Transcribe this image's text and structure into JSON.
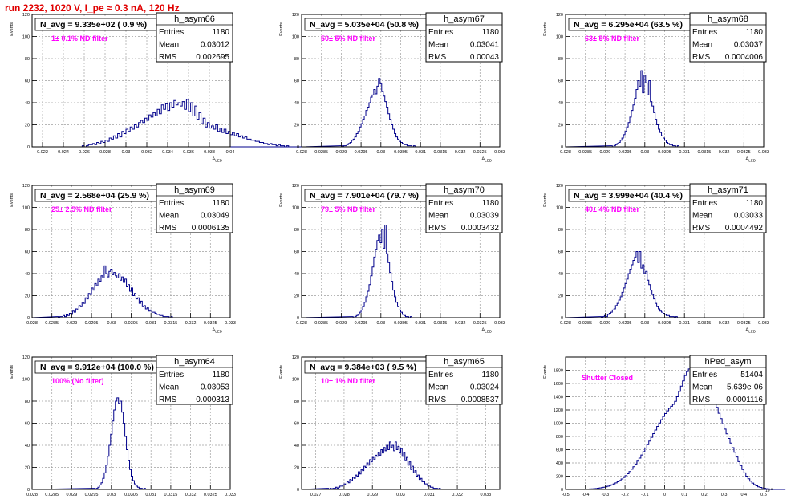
{
  "page": {
    "run_title": "run 2232,  1020 V, I_pe ≈ 0.3 nA, 120 Hz"
  },
  "colors": {
    "frame": "#000000",
    "grid": "#a0a0a0",
    "histogram": "#00008b",
    "label": "#ff00ff",
    "title": "#e00000"
  },
  "chart_data": [
    {
      "type": "histogram",
      "name": "h_asym66",
      "nd_label": "1± 0.1% ND filter",
      "n_avg": "N_avg = 9.335e+02 ( 0.9 %)",
      "stats": [
        [
          "Entries",
          "1180"
        ],
        [
          "Mean",
          "0.03012"
        ],
        [
          "RMS",
          "0.002695"
        ]
      ],
      "xlabel": "A_LED",
      "ylabel": "Events",
      "xlim": [
        0.021,
        0.04
      ],
      "ylim": [
        0,
        120
      ],
      "xticks": [
        0.022,
        0.024,
        0.026,
        0.028,
        0.03,
        0.032,
        0.034,
        0.036,
        0.038,
        0.04
      ],
      "xtick_labels": [
        "0.022",
        "0.024",
        "0.026",
        "0.028",
        "0.03",
        "0.032",
        "0.034",
        "0.036",
        "0.038",
        "0.04"
      ],
      "yticks": [
        0,
        20,
        40,
        60,
        80,
        100,
        120
      ],
      "x_first": 0.0218,
      "x_step": 0.0002,
      "counts": [
        0,
        0,
        0,
        0,
        0,
        0,
        0,
        0,
        0,
        0,
        0,
        0,
        0,
        0,
        0,
        0,
        0,
        0,
        0,
        0,
        1,
        0,
        1,
        2,
        2,
        3,
        2,
        4,
        3,
        5,
        4,
        6,
        5,
        8,
        7,
        10,
        8,
        12,
        9,
        14,
        12,
        16,
        14,
        18,
        16,
        20,
        18,
        22,
        24,
        22,
        26,
        24,
        29,
        27,
        31,
        28,
        34,
        30,
        38,
        34,
        39,
        33,
        40,
        36,
        42,
        38,
        40,
        37,
        41,
        34,
        43,
        32,
        40,
        28,
        37,
        25,
        31,
        21,
        26,
        18,
        22,
        17,
        19,
        16,
        20,
        14,
        17,
        13,
        16,
        12,
        14,
        11,
        13,
        10,
        12,
        9,
        10,
        8,
        9,
        7,
        7,
        6,
        6,
        5,
        5,
        4,
        4,
        3,
        3,
        2,
        3,
        2,
        2,
        1,
        2,
        1,
        1,
        0,
        1,
        0,
        0,
        0,
        0,
        0,
        0,
        0,
        0,
        0,
        0,
        0,
        0,
        0
      ]
    },
    {
      "type": "histogram",
      "name": "h_asym67",
      "nd_label": "50± 5% ND filter",
      "n_avg": "N_avg = 5.035e+04 (50.8 %)",
      "stats": [
        [
          "Entries",
          "1180"
        ],
        [
          "Mean",
          "0.03041"
        ],
        [
          "RMS",
          "0.00043"
        ]
      ],
      "xlabel": "A_LED",
      "ylabel": "Events",
      "xlim": [
        0.028,
        0.033
      ],
      "ylim": [
        0,
        120
      ],
      "xticks": [
        0.028,
        0.0285,
        0.029,
        0.0295,
        0.03,
        0.0305,
        0.031,
        0.0315,
        0.032,
        0.0325,
        0.033
      ],
      "xtick_labels": [
        "0.028",
        "0.0285",
        "0.029",
        "0.0295",
        "0.03",
        "0.0305",
        "0.031",
        "0.0315",
        "0.032",
        "0.0325",
        "0.033"
      ],
      "yticks": [
        0,
        20,
        40,
        60,
        80,
        100,
        120
      ],
      "x_first": 0.02898,
      "x_step": 4e-05,
      "counts": [
        1,
        0,
        1,
        1,
        2,
        3,
        4,
        6,
        7,
        9,
        12,
        14,
        18,
        21,
        25,
        28,
        33,
        36,
        40,
        45,
        47,
        52,
        48,
        55,
        62,
        57,
        50,
        46,
        41,
        36,
        30,
        25,
        20,
        16,
        12,
        9,
        7,
        5,
        4,
        3,
        2,
        2,
        1,
        1,
        1,
        0,
        1,
        0,
        0,
        0
      ]
    },
    {
      "type": "histogram",
      "name": "h_asym68",
      "nd_label": "63± 5% ND filter",
      "n_avg": "N_avg = 6.295e+04 (63.5 %)",
      "stats": [
        [
          "Entries",
          "1180"
        ],
        [
          "Mean",
          "0.03037"
        ],
        [
          "RMS",
          "0.0004006"
        ]
      ],
      "xlabel": "A_LED",
      "ylabel": "Events",
      "xlim": [
        0.028,
        0.033
      ],
      "ylim": [
        0,
        120
      ],
      "xticks": [
        0.028,
        0.0285,
        0.029,
        0.0295,
        0.03,
        0.0305,
        0.031,
        0.0315,
        0.032,
        0.0325,
        0.033
      ],
      "xtick_labels": [
        "0.028",
        "0.0285",
        "0.029",
        "0.0295",
        "0.03",
        "0.0305",
        "0.031",
        "0.0315",
        "0.032",
        "0.0325",
        "0.033"
      ],
      "yticks": [
        0,
        20,
        40,
        60,
        80,
        100,
        120
      ],
      "x_first": 0.02914,
      "x_step": 4e-05,
      "counts": [
        1,
        0,
        1,
        2,
        3,
        4,
        6,
        8,
        11,
        14,
        18,
        22,
        27,
        33,
        38,
        44,
        52,
        60,
        55,
        69,
        49,
        65,
        58,
        47,
        60,
        41,
        37,
        31,
        25,
        20,
        16,
        13,
        10,
        8,
        6,
        4,
        3,
        2,
        2,
        1,
        1,
        0,
        1,
        0,
        0
      ]
    },
    {
      "type": "histogram",
      "name": "h_asym69",
      "nd_label": "25± 2.5% ND filter",
      "n_avg": "N_avg = 2.568e+04 (25.9 %)",
      "stats": [
        [
          "Entries",
          "1180"
        ],
        [
          "Mean",
          "0.03049"
        ],
        [
          "RMS",
          "0.0006135"
        ]
      ],
      "xlabel": "A_LED",
      "ylabel": "Events",
      "xlim": [
        0.028,
        0.033
      ],
      "ylim": [
        0,
        120
      ],
      "xticks": [
        0.028,
        0.0285,
        0.029,
        0.0295,
        0.03,
        0.0305,
        0.031,
        0.0315,
        0.032,
        0.0325,
        0.033
      ],
      "xtick_labels": [
        "0.028",
        "0.0285",
        "0.029",
        "0.0295",
        "0.03",
        "0.0305",
        "0.031",
        "0.0315",
        "0.032",
        "0.0325",
        "0.033"
      ],
      "yticks": [
        0,
        20,
        40,
        60,
        80,
        100,
        120
      ],
      "x_first": 0.02862,
      "x_step": 4e-05,
      "counts": [
        1,
        0,
        1,
        1,
        2,
        1,
        3,
        2,
        4,
        3,
        6,
        5,
        8,
        7,
        11,
        10,
        14,
        13,
        18,
        17,
        22,
        21,
        27,
        25,
        31,
        29,
        35,
        33,
        38,
        36,
        47,
        40,
        37,
        42,
        44,
        39,
        41,
        38,
        36,
        40,
        34,
        37,
        32,
        35,
        28,
        30,
        24,
        27,
        20,
        22,
        17,
        18,
        13,
        15,
        10,
        11,
        8,
        9,
        6,
        7,
        5,
        5,
        4,
        3,
        3,
        2,
        2,
        1,
        1,
        1,
        1,
        0,
        1,
        0,
        0,
        0
      ]
    },
    {
      "type": "histogram",
      "name": "h_asym70",
      "nd_label": "79± 5% ND filter",
      "n_avg": "N_avg = 7.901e+04 (79.7 %)",
      "stats": [
        [
          "Entries",
          "1180"
        ],
        [
          "Mean",
          "0.03039"
        ],
        [
          "RMS",
          "0.0003432"
        ]
      ],
      "xlabel": "A_LED",
      "ylabel": "Events",
      "xlim": [
        0.028,
        0.033
      ],
      "ylim": [
        0,
        120
      ],
      "xticks": [
        0.028,
        0.0285,
        0.029,
        0.0295,
        0.03,
        0.0305,
        0.031,
        0.0315,
        0.032,
        0.0325,
        0.033
      ],
      "xtick_labels": [
        "0.028",
        "0.0285",
        "0.029",
        "0.0295",
        "0.03",
        "0.0305",
        "0.031",
        "0.0315",
        "0.032",
        "0.0325",
        "0.033"
      ],
      "yticks": [
        0,
        20,
        40,
        60,
        80,
        100,
        120
      ],
      "x_first": 0.02926,
      "x_step": 4e-05,
      "counts": [
        1,
        0,
        1,
        2,
        3,
        5,
        7,
        10,
        14,
        19,
        24,
        30,
        38,
        46,
        55,
        62,
        70,
        75,
        68,
        80,
        63,
        84,
        58,
        50,
        41,
        33,
        25,
        19,
        14,
        10,
        7,
        5,
        3,
        2,
        1,
        1,
        0,
        1,
        0,
        0
      ]
    },
    {
      "type": "histogram",
      "name": "h_asym71",
      "nd_label": "40± 4% ND filter",
      "n_avg": "N_avg = 3.999e+04 (40.4 %)",
      "stats": [
        [
          "Entries",
          "1180"
        ],
        [
          "Mean",
          "0.03033"
        ],
        [
          "RMS",
          "0.0004492"
        ]
      ],
      "xlabel": "A_LED",
      "ylabel": "Events",
      "xlim": [
        0.028,
        0.033
      ],
      "ylim": [
        0,
        120
      ],
      "xticks": [
        0.028,
        0.0285,
        0.029,
        0.0295,
        0.03,
        0.0305,
        0.031,
        0.0315,
        0.032,
        0.0325,
        0.033
      ],
      "xtick_labels": [
        "0.028",
        "0.0285",
        "0.029",
        "0.0295",
        "0.03",
        "0.0305",
        "0.031",
        "0.0315",
        "0.032",
        "0.0325",
        "0.033"
      ],
      "yticks": [
        0,
        20,
        40,
        60,
        80,
        100,
        120
      ],
      "x_first": 0.02886,
      "x_step": 4e-05,
      "counts": [
        1,
        0,
        1,
        2,
        1,
        3,
        4,
        5,
        7,
        8,
        11,
        13,
        16,
        19,
        23,
        27,
        31,
        35,
        40,
        44,
        48,
        52,
        55,
        60,
        50,
        60,
        45,
        48,
        40,
        42,
        34,
        30,
        25,
        21,
        17,
        13,
        10,
        8,
        6,
        5,
        4,
        3,
        2,
        2,
        1,
        1,
        1,
        0,
        1,
        0,
        0,
        0
      ]
    },
    {
      "type": "histogram",
      "name": "h_asym64",
      "nd_label": "100% (No filter)",
      "n_avg": "N_avg = 9.912e+04 (100.0 %)",
      "stats": [
        [
          "Entries",
          "1180"
        ],
        [
          "Mean",
          "0.03053"
        ],
        [
          "RMS",
          "0.000313"
        ]
      ],
      "xlabel": "A_LED",
      "ylabel": "Events",
      "xlim": [
        0.028,
        0.033
      ],
      "ylim": [
        0,
        120
      ],
      "xticks": [
        0.028,
        0.0285,
        0.029,
        0.0295,
        0.03,
        0.0305,
        0.031,
        0.0315,
        0.032,
        0.0325,
        0.033
      ],
      "xtick_labels": [
        "0.028",
        "0.0285",
        "0.029",
        "0.0295",
        "0.03",
        "0.0305",
        "0.031",
        "0.0315",
        "0.032",
        "0.0325",
        "0.033"
      ],
      "yticks": [
        0,
        20,
        40,
        60,
        80,
        100,
        120
      ],
      "x_first": 0.02954,
      "x_step": 4e-05,
      "counts": [
        1,
        0,
        1,
        2,
        4,
        6,
        10,
        15,
        22,
        30,
        40,
        50,
        62,
        72,
        80,
        83,
        78,
        80,
        70,
        60,
        48,
        36,
        26,
        18,
        12,
        8,
        5,
        3,
        2,
        1,
        1,
        0,
        1,
        0
      ]
    },
    {
      "type": "histogram",
      "name": "h_asym65",
      "nd_label": "10± 1% ND filter",
      "n_avg": "N_avg = 9.384e+03 ( 9.5 %)",
      "stats": [
        [
          "Entries",
          "1180"
        ],
        [
          "Mean",
          "0.03024"
        ],
        [
          "RMS",
          "0.0008537"
        ]
      ],
      "xlabel": "A_LED",
      "ylabel": "Events",
      "xlim": [
        0.0265,
        0.0335
      ],
      "ylim": [
        0,
        120
      ],
      "xticks": [
        0.027,
        0.028,
        0.029,
        0.03,
        0.031,
        0.032,
        0.033
      ],
      "xtick_labels": [
        "0.027",
        "0.028",
        "0.029",
        "0.03",
        "0.031",
        "0.032",
        "0.033"
      ],
      "yticks": [
        0,
        20,
        40,
        60,
        80,
        100,
        120
      ],
      "x_first": 0.0274,
      "x_step": 5e-05,
      "counts": [
        1,
        0,
        1,
        0,
        1,
        1,
        2,
        1,
        2,
        3,
        3,
        4,
        5,
        4,
        7,
        6,
        9,
        8,
        11,
        10,
        13,
        12,
        16,
        14,
        18,
        17,
        21,
        20,
        24,
        22,
        27,
        25,
        29,
        27,
        31,
        30,
        33,
        31,
        36,
        33,
        38,
        35,
        40,
        36,
        43,
        38,
        40,
        35,
        43,
        36,
        39,
        33,
        37,
        30,
        33,
        26,
        29,
        22,
        25,
        18,
        21,
        15,
        17,
        12,
        13,
        9,
        10,
        7,
        7,
        5,
        5,
        3,
        3,
        2,
        2,
        1,
        1,
        1,
        0,
        1,
        0,
        0,
        0
      ]
    },
    {
      "type": "histogram",
      "name": "hPed_asym",
      "nd_label": "Shutter Closed",
      "n_avg": "",
      "stats": [
        [
          "Entries",
          "51404"
        ],
        [
          "Mean",
          "5.639e-06"
        ],
        [
          "RMS",
          "0.0001116"
        ]
      ],
      "xlabel": "",
      "ylabel": "Events",
      "xlim": [
        -0.5,
        0.5
      ],
      "ylim": [
        0,
        2000
      ],
      "x_exponent": "10",
      "x_exponent_power": "-3",
      "xticks": [
        -0.5,
        -0.4,
        -0.3,
        -0.2,
        -0.1,
        0,
        0.1,
        0.2,
        0.3,
        0.4,
        0.5
      ],
      "xtick_labels": [
        "-0.5",
        "-0.4",
        "-0.3",
        "-0.2",
        "-0.1",
        "0",
        "0.1",
        "0.2",
        "0.3",
        "0.4",
        "0.5"
      ],
      "yticks": [
        0,
        200,
        400,
        600,
        800,
        1000,
        1200,
        1400,
        1600,
        1800
      ],
      "x_first": -0.45,
      "x_step": 0.01,
      "counts": [
        1,
        1,
        2,
        2,
        3,
        4,
        5,
        7,
        9,
        11,
        14,
        18,
        22,
        27,
        33,
        40,
        49,
        59,
        70,
        83,
        98,
        115,
        135,
        157,
        181,
        208,
        237,
        270,
        305,
        343,
        383,
        427,
        472,
        520,
        570,
        622,
        676,
        731,
        786,
        842,
        897,
        951,
        1003,
        1053,
        1101,
        1146,
        1186,
        1224,
        1256,
        1285,
        1330,
        1400,
        1480,
        1560,
        1640,
        1720,
        1780,
        1820,
        1850,
        1870,
        1880,
        1870,
        1850,
        1820,
        1780,
        1720,
        1650,
        1570,
        1480,
        1400,
        1320,
        1240,
        1150,
        1070,
        990,
        910,
        840,
        770,
        700,
        630,
        560,
        490,
        420,
        360,
        300,
        250,
        200,
        160,
        125,
        95,
        72,
        54,
        40,
        30,
        22,
        16,
        11,
        8,
        6,
        4,
        3,
        2,
        1,
        1,
        1,
        0
      ]
    }
  ]
}
